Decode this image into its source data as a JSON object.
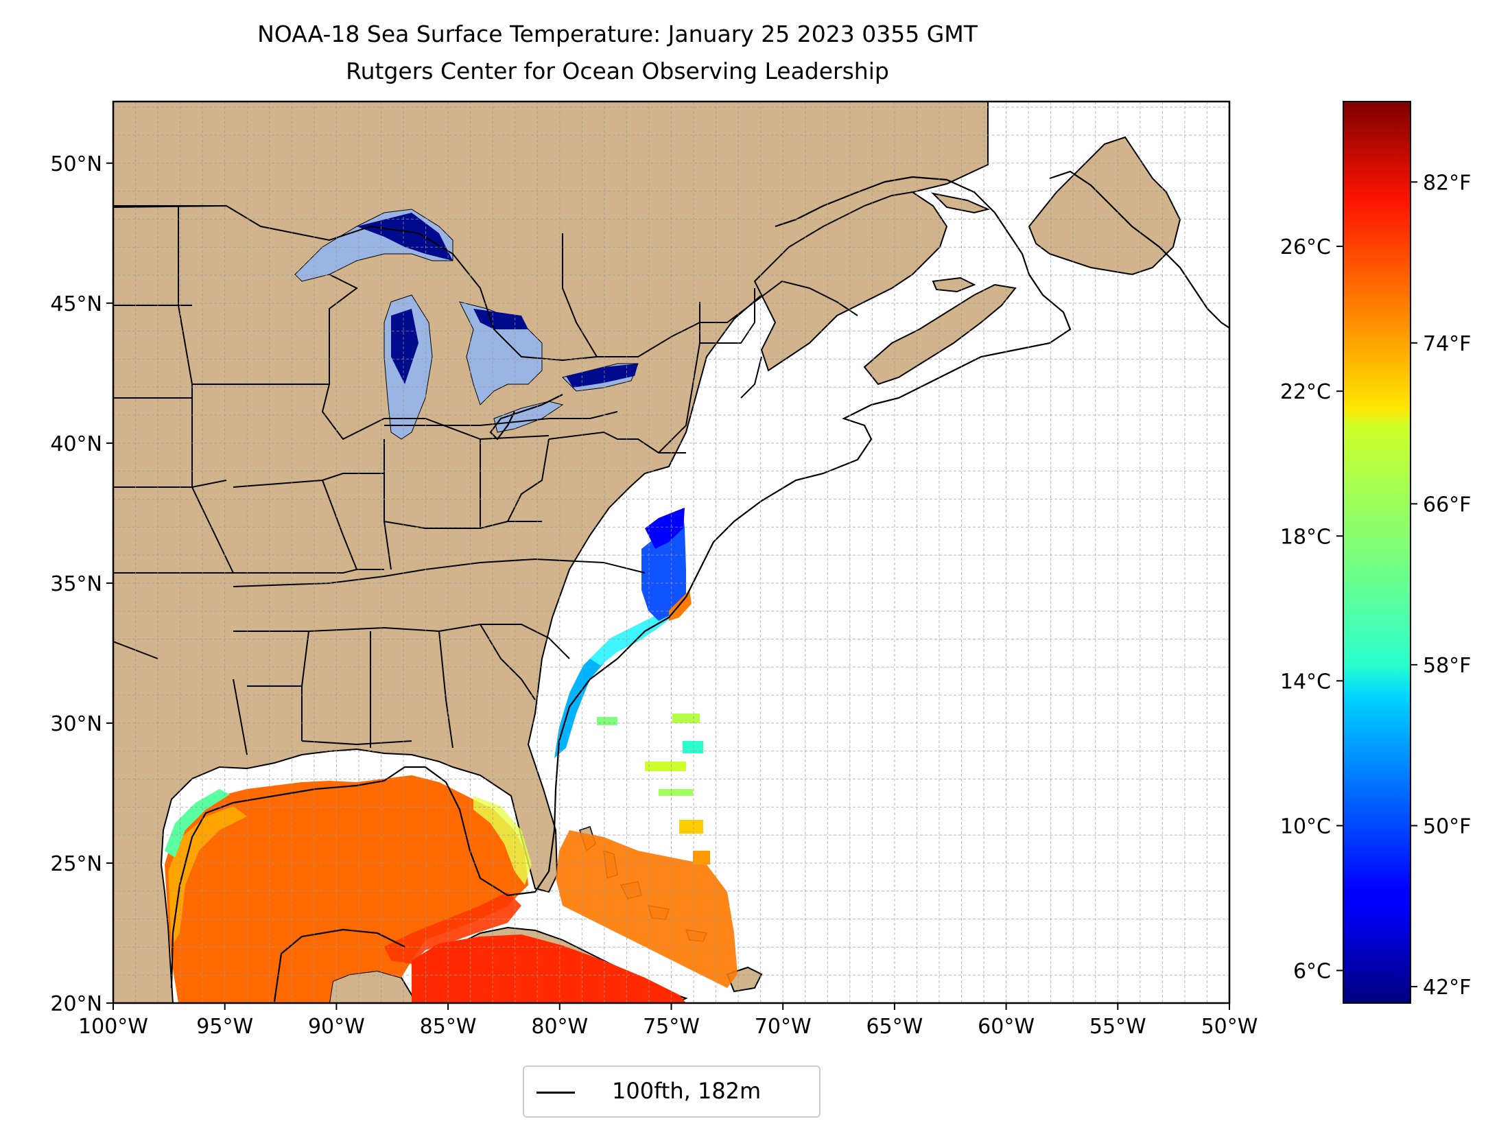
{
  "title": {
    "line1": "NOAA-18 Sea Surface Temperature: January 25 2023 0355 GMT",
    "line2": "Rutgers Center for Ocean Observing Leadership"
  },
  "map": {
    "lon_range": [
      -100,
      -50
    ],
    "lat_range": [
      20,
      52.2
    ],
    "land_color": "#d2b48c",
    "lake_ice_color": "#9ab5e4",
    "ocean_no_data_color": "#ffffff",
    "gridlines": true,
    "x_ticks": [
      {
        "lon": -100,
        "label": "100°W"
      },
      {
        "lon": -95,
        "label": "95°W"
      },
      {
        "lon": -90,
        "label": "90°W"
      },
      {
        "lon": -85,
        "label": "85°W"
      },
      {
        "lon": -80,
        "label": "80°W"
      },
      {
        "lon": -75,
        "label": "75°W"
      },
      {
        "lon": -70,
        "label": "70°W"
      },
      {
        "lon": -65,
        "label": "65°W"
      },
      {
        "lon": -60,
        "label": "60°W"
      },
      {
        "lon": -55,
        "label": "55°W"
      },
      {
        "lon": -50,
        "label": "50°W"
      }
    ],
    "y_ticks": [
      {
        "lat": 20,
        "label": "20°N"
      },
      {
        "lat": 25,
        "label": "25°N"
      },
      {
        "lat": 30,
        "label": "30°N"
      },
      {
        "lat": 35,
        "label": "35°N"
      },
      {
        "lat": 40,
        "label": "40°N"
      },
      {
        "lat": 45,
        "label": "45°N"
      },
      {
        "lat": 50,
        "label": "50°N"
      }
    ]
  },
  "colorbar": {
    "colormap": "jet",
    "celsius_range": [
      5.1,
      30.0
    ],
    "celsius_ticks": [
      {
        "value": 6,
        "label": "6°C"
      },
      {
        "value": 10,
        "label": "10°C"
      },
      {
        "value": 14,
        "label": "14°C"
      },
      {
        "value": 18,
        "label": "18°C"
      },
      {
        "value": 22,
        "label": "22°C"
      },
      {
        "value": 26,
        "label": "26°C"
      }
    ],
    "fahrenheit_ticks": [
      {
        "value": 42,
        "label": "42°F"
      },
      {
        "value": 50,
        "label": "50°F"
      },
      {
        "value": 58,
        "label": "58°F"
      },
      {
        "value": 66,
        "label": "66°F"
      },
      {
        "value": 74,
        "label": "74°F"
      },
      {
        "value": 82,
        "label": "82°F"
      }
    ]
  },
  "legend": {
    "label": "100fth, 182m",
    "line_color": "#000000"
  }
}
